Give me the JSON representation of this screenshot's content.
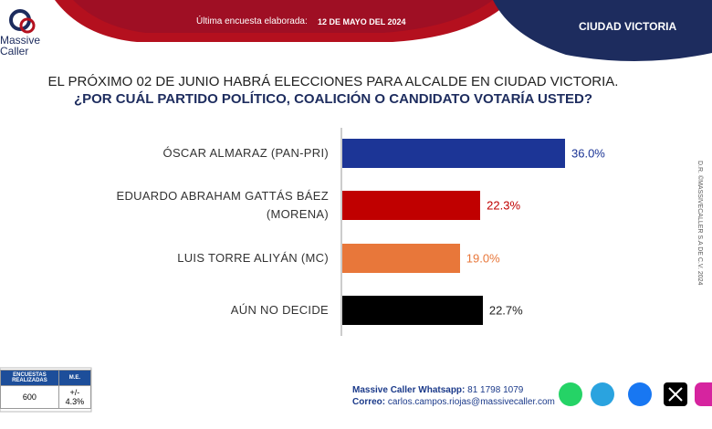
{
  "header": {
    "logo": "Massive Caller",
    "survey_label": "Última encuesta elaborada:",
    "survey_date": "12 DE MAYO DEL 2024",
    "city": "CIUDAD VICTORIA"
  },
  "chart_data": {
    "type": "bar",
    "orientation": "horizontal",
    "title": "EL PRÓXIMO 02 DE JUNIO HABRÁ ELECCIONES PARA ALCALDE EN CIUDAD VICTORIA.",
    "subtitle": "¿POR CUÁL PARTIDO POLÍTICO, COALICIÓN O CANDIDATO VOTARÍA USTED?",
    "categories": [
      "ÓSCAR ALMARAZ (PAN-PRI)",
      "EDUARDO ABRAHAM GATTÁS BÁEZ (MORENA)",
      "LUIS TORRE ALIYÁN (MC)",
      "AÚN NO DECIDE"
    ],
    "values": [
      36.0,
      22.3,
      19.0,
      22.7
    ],
    "value_labels": [
      "36.0%",
      "22.3%",
      "19.0%",
      "22.7%"
    ],
    "colors": [
      "#1c3596",
      "#c00000",
      "#e8773a",
      "#000000"
    ],
    "label_colors": [
      "#1c3596",
      "#c00000",
      "#e8773a",
      "#222222"
    ]
  },
  "footer": {
    "stats": [
      {
        "label": "ENCUESTAS REALIZADAS",
        "value": "600"
      },
      {
        "label": "M.E.",
        "value": "+/- 4.3%"
      }
    ],
    "whatsapp_label": "Massive Caller Whatsapp:",
    "whatsapp": "81 1798 1079",
    "email_label": "Correo:",
    "email": "carlos.campos.riojas@massivecaller.com",
    "copyright": "D.R. ©MASSIVECALLER S.A DE C.V. 2024"
  }
}
